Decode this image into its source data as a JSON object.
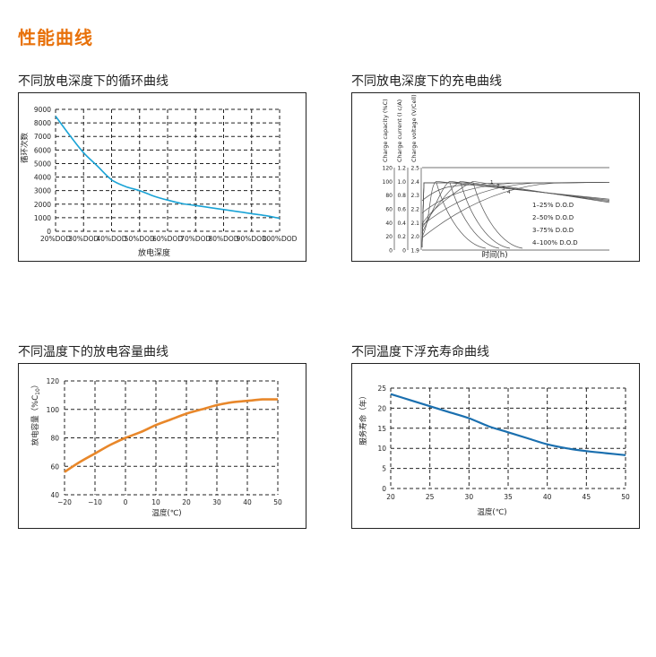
{
  "page_title": "性能曲线",
  "chart_data": [
    {
      "type": "line",
      "section_title": "不同放电深度下的循环曲线",
      "xlabel": "放电深度",
      "ylabel": "循环次数",
      "categories": [
        "20%DOD",
        "30%DOD",
        "40%DOD",
        "50%DOD",
        "60%DOD",
        "70%DOD",
        "80%DOD",
        "90%DOD",
        "100%DOD"
      ],
      "yticks": [
        "0",
        "1000",
        "2000",
        "3000",
        "4000",
        "5000",
        "6000",
        "7000",
        "8000",
        "9000"
      ],
      "ylim": [
        0,
        9000
      ],
      "grid": true,
      "color": "#1aa3d6",
      "series": [
        {
          "x": [
            20,
            25,
            30,
            35,
            40,
            45,
            50,
            55,
            60,
            65,
            70,
            75,
            80,
            85,
            90,
            95,
            100
          ],
          "values": [
            8500,
            7100,
            5800,
            4800,
            3800,
            3300,
            3000,
            2600,
            2300,
            2050,
            1900,
            1750,
            1600,
            1450,
            1300,
            1150,
            950
          ]
        }
      ]
    },
    {
      "type": "line",
      "section_title": "不同放电深度下的充电曲线",
      "xlabel": "时间(h)",
      "axis1_label": "Charge capacity (%C)",
      "axis2_label": "Charge current (I c/A)",
      "axis3_label": "Charge voltage (V/Cell)",
      "axis1_ticks": [
        "120",
        "100",
        "80",
        "60",
        "40",
        "20",
        "0"
      ],
      "axis2_ticks": [
        "1.2",
        "1.0",
        "0.8",
        "0.6",
        "0.4",
        "0.2",
        "0"
      ],
      "axis3_ticks": [
        "2.5",
        "2.4",
        "2.3",
        "2.2",
        "2.1",
        "2.0",
        "1.9"
      ],
      "legend": [
        "1–25% D.O.D",
        "2–50% D.O.D",
        "3–75% D.O.D",
        "4–100% D.O.D"
      ],
      "curve_labels": [
        "1",
        "2",
        "3",
        "4"
      ],
      "legend_position": "right",
      "color": "#333333"
    },
    {
      "type": "line",
      "section_title": "不同温度下的放电容量曲线",
      "xlabel": "温度(℃)",
      "ylabel": "放电容量（%C",
      "ylabel_sub": "10",
      "ylabel_close": "）",
      "xticks": [
        "−20",
        "−10",
        "0",
        "10",
        "20",
        "30",
        "40",
        "50"
      ],
      "yticks": [
        "40",
        "60",
        "80",
        "100",
        "120"
      ],
      "xlim": [
        -20,
        50
      ],
      "ylim": [
        40,
        120
      ],
      "grid": true,
      "color": "#e8872a",
      "series": [
        {
          "x": [
            -20,
            -15,
            -10,
            -5,
            0,
            5,
            10,
            15,
            20,
            25,
            30,
            35,
            40,
            45,
            50
          ],
          "values": [
            56,
            63,
            69,
            75,
            80,
            84,
            89,
            93,
            97,
            100,
            103,
            105,
            106,
            107,
            107
          ]
        }
      ]
    },
    {
      "type": "line",
      "section_title": "不同温度下浮充寿命曲线",
      "xlabel": "温度(℃)",
      "ylabel": "服务寿命（年）",
      "xticks": [
        "20",
        "25",
        "30",
        "35",
        "40",
        "45",
        "50"
      ],
      "yticks": [
        "0",
        "5",
        "10",
        "15",
        "20",
        "25"
      ],
      "xlim": [
        20,
        50
      ],
      "ylim": [
        0,
        25
      ],
      "grid": true,
      "color": "#1a6faf",
      "series": [
        {
          "x": [
            20,
            22.5,
            25,
            27.5,
            30,
            32.5,
            35,
            37.5,
            40,
            42.5,
            45,
            47.5,
            50
          ],
          "values": [
            23.5,
            22,
            20.5,
            19,
            17.5,
            15.5,
            14,
            12.5,
            11,
            10,
            9.3,
            8.8,
            8.3
          ]
        }
      ]
    }
  ]
}
